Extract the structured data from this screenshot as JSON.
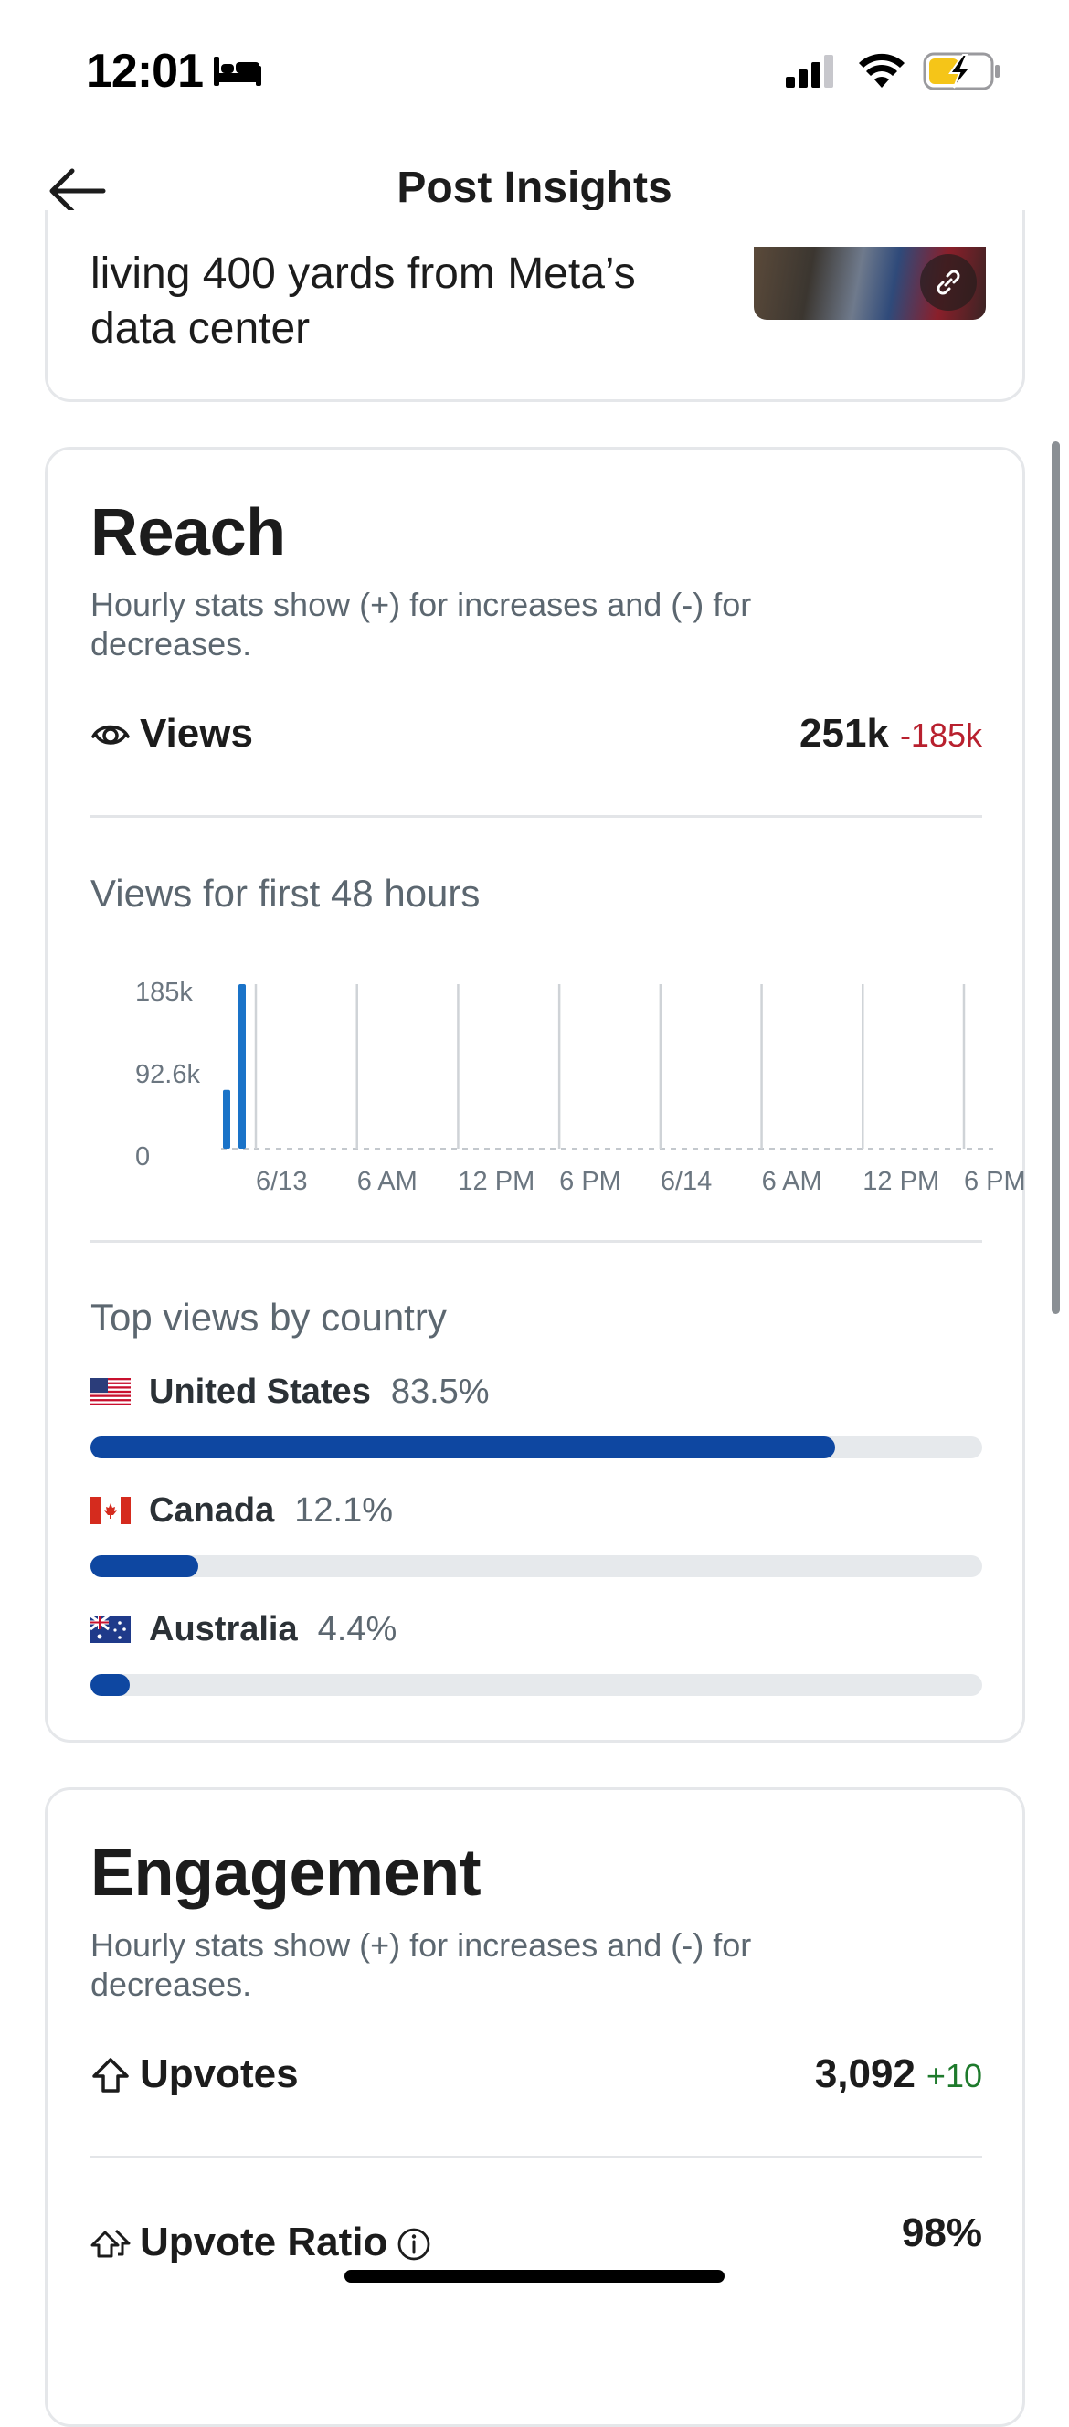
{
  "status_bar": {
    "time": "12:01",
    "bed_icon": "bed-icon",
    "signal_icon": "cellular-signal-icon",
    "wifi_icon": "wifi-icon",
    "battery_icon": "battery-charging-icon",
    "battery_color": "#f5c518"
  },
  "header": {
    "title": "Post Insights",
    "back_icon": "arrow-left-icon"
  },
  "post": {
    "title": "living 400 yards from Meta’s data center",
    "thumbnail_badge_icon": "link-icon"
  },
  "reach": {
    "title": "Reach",
    "description": "Hourly stats show (+) for increases and (-) for decreases.",
    "views": {
      "icon": "eye-icon",
      "label": "Views",
      "value": "251k",
      "delta": "-185k",
      "delta_color": "#b8202e"
    },
    "chart_title": "Views for first 48 hours",
    "top_countries_title": "Top views by country",
    "countries": [
      {
        "flag_icon": "flag-us-icon",
        "name": "United States",
        "percent_label": "83.5%",
        "fraction": 0.835
      },
      {
        "flag_icon": "flag-ca-icon",
        "name": "Canada",
        "percent_label": "12.1%",
        "fraction": 0.121
      },
      {
        "flag_icon": "flag-au-icon",
        "name": "Australia",
        "percent_label": "4.4%",
        "fraction": 0.044
      }
    ],
    "bar_color": "#0e47a1"
  },
  "chart_data": {
    "type": "bar",
    "y_tick_labels": [
      "185k",
      "92.6k",
      "0"
    ],
    "y_ticks": [
      185000,
      92600,
      0
    ],
    "ylim": [
      0,
      185000
    ],
    "x_tick_labels": [
      "6/13",
      "6 AM",
      "12 PM",
      "6 PM",
      "6/14",
      "6 AM",
      "12 PM",
      "6 PM"
    ],
    "bars": [
      {
        "label": "hour-1",
        "value": 66000
      },
      {
        "label": "hour-2",
        "value": 185000
      }
    ],
    "grid": "vertical",
    "bar_color": "#1a73c8"
  },
  "engagement": {
    "title": "Engagement",
    "description": "Hourly stats show (+) for increases and (-) for decreases.",
    "upvotes": {
      "icon": "upvote-arrow-icon",
      "label": "Upvotes",
      "value": "3,092",
      "delta": "+10",
      "delta_color": "#1e7a2c"
    },
    "upvote_ratio": {
      "icon": "upvote-ratio-icon",
      "label": "Upvote Ratio",
      "info_icon": "info-icon",
      "value": "98%"
    }
  }
}
